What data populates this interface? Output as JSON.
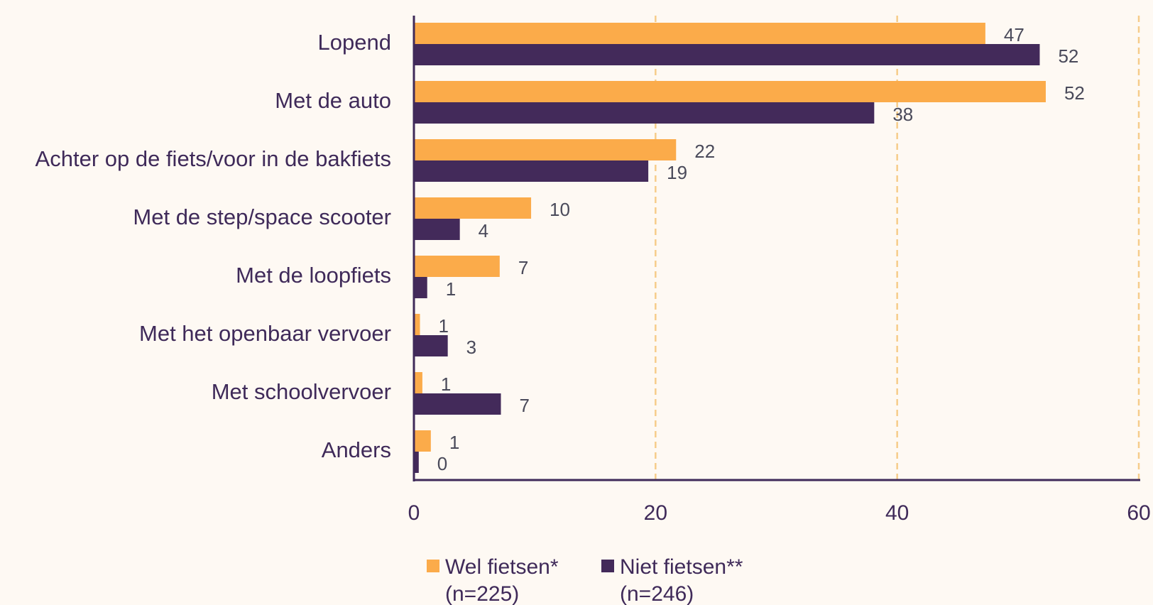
{
  "chart_data": {
    "type": "bar",
    "orientation": "horizontal",
    "categories": [
      "Lopend",
      "Met de auto",
      "Achter op de fiets/voor in de bakfiets",
      "Met de step/space scooter",
      "Met de loopfiets",
      "Met het openbaar vervoer",
      "Met schoolvervoer",
      "Anders"
    ],
    "series": [
      {
        "name": "Wel fietsen*",
        "name_line2": "(n=225)",
        "color": "#fbab4a",
        "values": [
          47,
          52,
          22,
          10,
          7,
          1,
          1,
          1
        ],
        "plot_values": [
          47.3,
          52.3,
          21.7,
          9.7,
          7.1,
          0.5,
          0.7,
          1.4
        ]
      },
      {
        "name": "Niet fietsen**",
        "name_line2": "(n=246)",
        "color": "#432a5a",
        "values": [
          52,
          38,
          19,
          4,
          1,
          3,
          7,
          0
        ],
        "plot_values": [
          51.8,
          38.1,
          19.4,
          3.8,
          1.1,
          2.8,
          7.2,
          0.4
        ]
      }
    ],
    "xlim": [
      0,
      60
    ],
    "xticks": [
      "0",
      "20",
      "40",
      "60"
    ],
    "grid": "vertical dashed",
    "legend": "bottom",
    "title": "",
    "xlabel": "",
    "ylabel": ""
  }
}
